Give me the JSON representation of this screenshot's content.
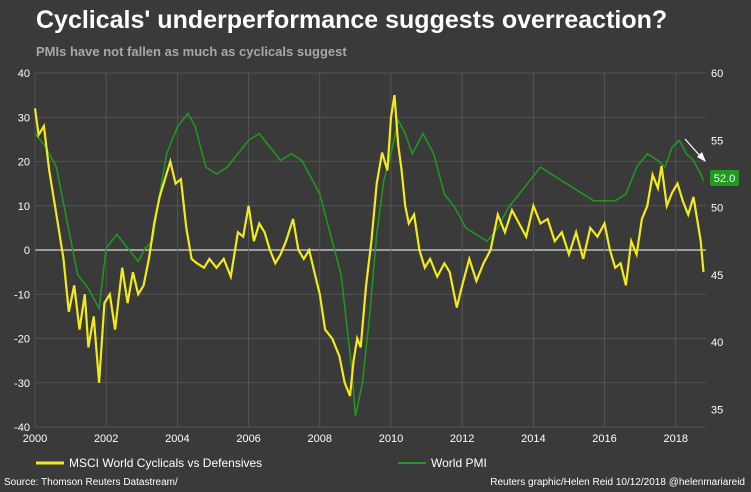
{
  "title": "Cyclicals' underperformance suggests overreaction?",
  "subtitle": "PMIs have not fallen as much as cyclicals suggest",
  "source": "Source: Thomson Reuters Datastream/",
  "credit": "Reuters graphic/Helen Reid 10/12/2018 @helenmariareid",
  "colors": {
    "background": "#3a3a3a",
    "cyclicals": "#f2ea1c",
    "pmi": "#1f9a1f",
    "grid": "#5a5a5a",
    "zero_line": "#ffffff"
  },
  "chart_data": {
    "type": "line",
    "x_ticks": [
      "2000",
      "2002",
      "2004",
      "2006",
      "2008",
      "2010",
      "2012",
      "2014",
      "2016",
      "2018"
    ],
    "xlim": [
      2000,
      2018.85
    ],
    "y_left": {
      "ticks": [
        "40",
        "30",
        "20",
        "10",
        "0",
        "-10",
        "-20",
        "-30",
        "-40"
      ],
      "ylim": [
        -40,
        40
      ]
    },
    "y_right": {
      "ticks": [
        "60",
        "55",
        "50",
        "45",
        "40",
        "35"
      ],
      "ylim": [
        33.7,
        60
      ]
    },
    "pmi_last_label": "52.0",
    "grid": true,
    "legend_position": "bottom",
    "series": [
      {
        "name": "MSCI World Cyclicals vs Defensives",
        "axis": "left",
        "x": [
          2000.0,
          2000.1,
          2000.25,
          2000.4,
          2000.6,
          2000.8,
          2000.95,
          2001.1,
          2001.25,
          2001.4,
          2001.5,
          2001.65,
          2001.8,
          2001.95,
          2002.1,
          2002.25,
          2002.45,
          2002.6,
          2002.75,
          2002.9,
          2003.05,
          2003.2,
          2003.35,
          2003.5,
          2003.65,
          2003.8,
          2003.95,
          2004.1,
          2004.25,
          2004.4,
          2004.55,
          2004.75,
          2004.9,
          2005.1,
          2005.3,
          2005.5,
          2005.7,
          2005.85,
          2006.0,
          2006.15,
          2006.3,
          2006.45,
          2006.6,
          2006.75,
          2006.9,
          2007.05,
          2007.25,
          2007.4,
          2007.55,
          2007.7,
          2007.85,
          2008.0,
          2008.15,
          2008.35,
          2008.55,
          2008.7,
          2008.85,
          2008.95,
          2009.05,
          2009.15,
          2009.3,
          2009.45,
          2009.6,
          2009.75,
          2009.9,
          2010.0,
          2010.1,
          2010.2,
          2010.3,
          2010.4,
          2010.5,
          2010.65,
          2010.8,
          2010.95,
          2011.1,
          2011.3,
          2011.5,
          2011.65,
          2011.85,
          2012.0,
          2012.2,
          2012.4,
          2012.6,
          2012.8,
          2013.0,
          2013.2,
          2013.4,
          2013.6,
          2013.8,
          2014.0,
          2014.2,
          2014.4,
          2014.6,
          2014.8,
          2015.0,
          2015.2,
          2015.4,
          2015.6,
          2015.8,
          2016.0,
          2016.15,
          2016.3,
          2016.45,
          2016.6,
          2016.75,
          2016.9,
          2017.05,
          2017.2,
          2017.35,
          2017.5,
          2017.6,
          2017.75,
          2017.9,
          2018.05,
          2018.2,
          2018.35,
          2018.5,
          2018.6,
          2018.7,
          2018.78
        ],
        "values": [
          32,
          26,
          28,
          18,
          8,
          -2,
          -14,
          -8,
          -18,
          -10,
          -22,
          -15,
          -30,
          -12,
          -10,
          -18,
          -4,
          -12,
          -5,
          -10,
          -8,
          -2,
          6,
          12,
          16,
          20,
          15,
          16,
          5,
          -2,
          -3,
          -4,
          -2,
          -4,
          -2,
          -6,
          4,
          3,
          10,
          2,
          6,
          4,
          0,
          -3,
          -1,
          2,
          7,
          0,
          -2,
          0,
          -5,
          -10,
          -18,
          -20,
          -24,
          -30,
          -33,
          -25,
          -20,
          -22,
          -8,
          2,
          15,
          22,
          18,
          30,
          35,
          24,
          18,
          10,
          6,
          8,
          0,
          -4,
          -2,
          -6,
          -3,
          -5,
          -13,
          -8,
          -2,
          -7,
          -3,
          0,
          8,
          4,
          9,
          6,
          3,
          10,
          6,
          7,
          2,
          4,
          -1,
          4,
          -2,
          5,
          3,
          6,
          0,
          -4,
          -3,
          -8,
          2,
          -1,
          7,
          10,
          17,
          14,
          19,
          10,
          13,
          15,
          11,
          8,
          12,
          7,
          2,
          -5
        ]
      },
      {
        "name": "World PMI",
        "axis": "right",
        "x": [
          2000.0,
          2000.3,
          2000.6,
          2000.9,
          2001.2,
          2001.5,
          2001.8,
          2002.0,
          2002.3,
          2002.6,
          2002.9,
          2003.1,
          2003.3,
          2003.5,
          2003.7,
          2004.0,
          2004.3,
          2004.5,
          2004.8,
          2005.1,
          2005.4,
          2005.7,
          2006.0,
          2006.3,
          2006.6,
          2006.9,
          2007.2,
          2007.5,
          2007.8,
          2008.0,
          2008.3,
          2008.6,
          2008.9,
          2009.0,
          2009.2,
          2009.4,
          2009.6,
          2009.8,
          2010.0,
          2010.2,
          2010.4,
          2010.6,
          2010.9,
          2011.2,
          2011.5,
          2011.8,
          2012.1,
          2012.4,
          2012.7,
          2013.0,
          2013.3,
          2013.6,
          2013.9,
          2014.2,
          2014.5,
          2014.8,
          2015.1,
          2015.4,
          2015.7,
          2016.0,
          2016.3,
          2016.6,
          2016.9,
          2017.2,
          2017.5,
          2017.7,
          2017.9,
          2018.1,
          2018.3,
          2018.5,
          2018.7,
          2018.78
        ],
        "values": [
          55.5,
          54.5,
          53,
          49,
          45,
          44,
          42.5,
          47,
          48,
          47,
          46,
          47,
          47.5,
          51,
          54,
          56,
          57,
          56,
          53,
          52.5,
          53,
          54,
          55,
          55.5,
          54.5,
          53.5,
          54,
          53.5,
          52,
          51,
          48,
          45,
          38,
          34.5,
          37,
          42,
          48,
          52,
          54,
          56.5,
          55.5,
          54,
          55.5,
          54,
          51,
          50,
          48.5,
          48,
          47.5,
          48.5,
          50,
          51,
          52,
          53,
          52.5,
          52,
          51.5,
          51,
          50.5,
          50.5,
          50.5,
          51,
          53,
          54,
          53.5,
          53,
          54.5,
          55,
          54,
          53.5,
          52.5,
          52
        ]
      }
    ]
  }
}
